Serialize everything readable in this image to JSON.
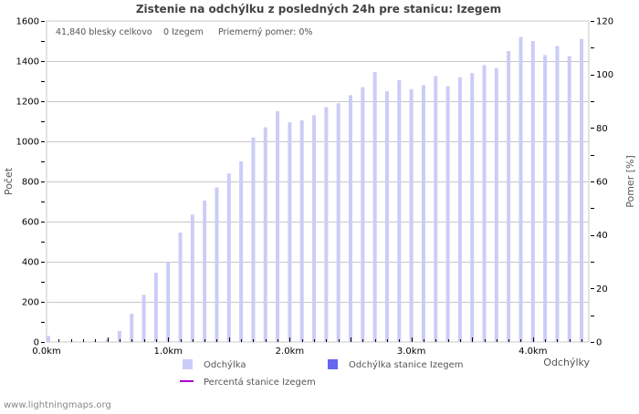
{
  "title": "Zistenie na odchýlku z posledných 24h pre stanicu: Izegem",
  "info": {
    "total": "41,840 blesky celkovo",
    "station": "0 Izegem",
    "ratio": "Priemerný pomer: 0%"
  },
  "axes": {
    "left_label": "Počet",
    "right_label": "Pomer [%]",
    "x_label": "Odchýlky"
  },
  "legend": [
    {
      "label": "Odchýlka",
      "color": "#ccccf8",
      "kind": "box"
    },
    {
      "label": "Odchýlka stanice Izegem",
      "color": "#6666ee",
      "kind": "box"
    },
    {
      "label": "Percentá stanice Izegem",
      "color": "#aa00cc",
      "kind": "line"
    }
  ],
  "footer": "www.lightningmaps.org",
  "colors": {
    "bar": "#ccccf8",
    "station_bar": "#6666ee",
    "ratio_line": "#aa00cc",
    "grid": "#c8c8c8",
    "axis": "#c8c8c8"
  },
  "chart_data": {
    "type": "bar",
    "title": "Zistenie na odchýlku z posledných 24h pre stanicu: Izegem",
    "xlabel": "Odchýlky",
    "ylabel": "Počet",
    "y2label": "Pomer [%]",
    "ylim": [
      0,
      1600
    ],
    "y2lim": [
      0,
      120
    ],
    "yticks": [
      0,
      200,
      400,
      600,
      800,
      1000,
      1200,
      1400,
      1600
    ],
    "y2ticks": [
      0,
      20,
      40,
      60,
      80,
      100,
      120
    ],
    "xticks": [
      "0.0km",
      "1.0km",
      "2.0km",
      "3.0km",
      "4.0km"
    ],
    "grid": true,
    "legend_position": "bottom",
    "categories": [
      "0.0",
      "0.1",
      "0.2",
      "0.3",
      "0.4",
      "0.5",
      "0.6",
      "0.7",
      "0.8",
      "0.9",
      "1.0",
      "1.1",
      "1.2",
      "1.3",
      "1.4",
      "1.5",
      "1.6",
      "1.7",
      "1.8",
      "1.9",
      "2.0",
      "2.1",
      "2.2",
      "2.3",
      "2.4",
      "2.5",
      "2.6",
      "2.7",
      "2.8",
      "2.9",
      "3.0",
      "3.1",
      "3.2",
      "3.3",
      "3.4",
      "3.5",
      "3.6",
      "3.7",
      "3.8",
      "3.9",
      "4.0",
      "4.1",
      "4.2",
      "4.3",
      "4.4"
    ],
    "series": [
      {
        "name": "Odchýlka",
        "values": [
          30,
          0,
          0,
          0,
          5,
          15,
          55,
          140,
          235,
          345,
          400,
          545,
          635,
          705,
          770,
          840,
          900,
          1020,
          1070,
          1150,
          1095,
          1105,
          1130,
          1170,
          1190,
          1230,
          1270,
          1345,
          1250,
          1305,
          1260,
          1280,
          1325,
          1275,
          1320,
          1340,
          1380,
          1365,
          1450,
          1520,
          1500,
          1430,
          1475,
          1425,
          1510
        ]
      },
      {
        "name": "Odchýlka stanice Izegem",
        "values": [
          0,
          0,
          0,
          0,
          0,
          0,
          0,
          0,
          0,
          0,
          0,
          0,
          0,
          0,
          0,
          0,
          0,
          0,
          0,
          0,
          0,
          0,
          0,
          0,
          0,
          0,
          0,
          0,
          0,
          0,
          0,
          0,
          0,
          0,
          0,
          0,
          0,
          0,
          0,
          0,
          0,
          0,
          0,
          0,
          0
        ]
      },
      {
        "name": "Percentá stanice Izegem",
        "axis": "right",
        "values": [
          0,
          0,
          0,
          0,
          0,
          0,
          0,
          0,
          0,
          0,
          0,
          0,
          0,
          0,
          0,
          0,
          0,
          0,
          0,
          0,
          0,
          0,
          0,
          0,
          0,
          0,
          0,
          0,
          0,
          0,
          0,
          0,
          0,
          0,
          0,
          0,
          0,
          0,
          0,
          0,
          0,
          0,
          0,
          0,
          0
        ]
      }
    ]
  }
}
